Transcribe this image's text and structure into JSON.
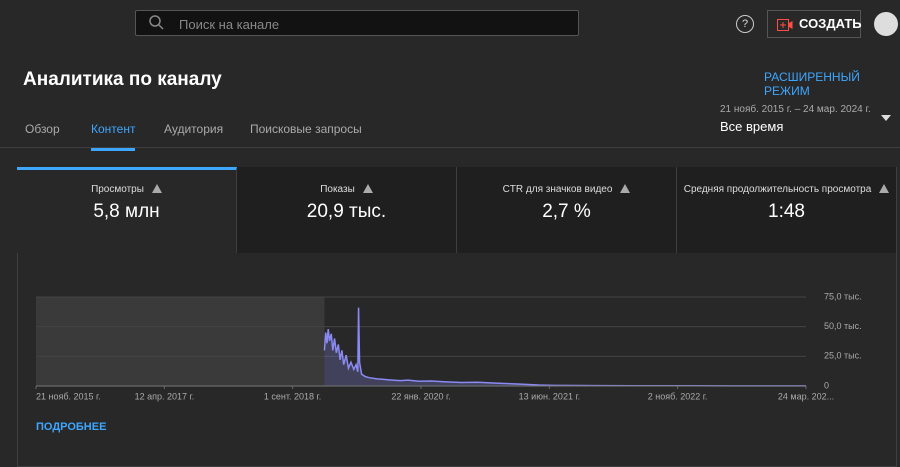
{
  "header": {
    "search_placeholder": "Поиск на канале",
    "help": "?",
    "create_button": "СОЗДАТЬ"
  },
  "page": {
    "title": "Аналитика по каналу",
    "advanced_mode": "РАСШИРЕННЫЙ РЕЖИМ",
    "date_range": "21 нояб. 2015 г. – 24 мар. 2024 г.",
    "period": "Все время",
    "tabs": [
      "Обзор",
      "Контент",
      "Аудитория",
      "Поисковые запросы"
    ],
    "active_tab": 1
  },
  "metrics": [
    {
      "label": "Просмотры",
      "value": "5,8 млн"
    },
    {
      "label": "Показы",
      "value": "20,9 тыс."
    },
    {
      "label": "CTR для значков видео",
      "value": "2,7 %"
    },
    {
      "label": "Средняя продолжительность просмотра",
      "value": "1:48"
    }
  ],
  "more_link": "ПОДРОБНЕЕ",
  "chart_data": {
    "type": "line",
    "x": [
      "2019-01-05",
      "2019-01-10",
      "2019-01-15",
      "2019-01-20",
      "2019-01-25",
      "2019-02-01",
      "2019-02-07",
      "2019-02-14",
      "2019-02-21",
      "2019-03-01",
      "2019-03-08",
      "2019-03-15",
      "2019-03-22",
      "2019-04-01",
      "2019-04-10",
      "2019-04-20",
      "2019-05-01",
      "2019-05-10",
      "2019-05-17",
      "2019-05-20",
      "2019-05-24",
      "2019-06-01",
      "2019-06-15",
      "2019-07-01",
      "2019-08-01",
      "2019-09-01",
      "2019-10-01",
      "2019-11-01",
      "2019-12-01",
      "2020-01-15",
      "2020-03-01",
      "2020-05-01",
      "2020-07-01",
      "2020-09-01",
      "2020-11-01",
      "2021-01-01",
      "2021-03-01",
      "2021-05-01",
      "2021-07-01",
      "2021-10-01",
      "2022-01-01",
      "2022-06-01",
      "2023-01-01",
      "2023-06-01",
      "2024-03-24"
    ],
    "series": [
      {
        "name": "Просмотры",
        "color": "#8a8af2",
        "values": [
          30000,
          45000,
          36000,
          48000,
          38000,
          44000,
          30000,
          40000,
          28000,
          35000,
          22000,
          30000,
          18000,
          26000,
          15000,
          20000,
          14000,
          18000,
          12000,
          66000,
          20000,
          10000,
          8000,
          7000,
          6000,
          5500,
          5000,
          4500,
          5000,
          4000,
          4200,
          3500,
          3000,
          3200,
          2500,
          2000,
          1500,
          800,
          500,
          400,
          300,
          250,
          200,
          150,
          100
        ]
      }
    ],
    "xlim": [
      "2015-11-21",
      "2024-03-24"
    ],
    "xticks": [
      {
        "value": "2015-11-21",
        "label": "21 нояб. 2015 г."
      },
      {
        "value": "2017-04-12",
        "label": "12 апр. 2017 г."
      },
      {
        "value": "2018-09-01",
        "label": "1 сент. 2018 г."
      },
      {
        "value": "2020-01-22",
        "label": "22 янв. 2020 г."
      },
      {
        "value": "2021-06-13",
        "label": "13 июн. 2021 г."
      },
      {
        "value": "2022-11-02",
        "label": "2 нояб. 2022 г."
      },
      {
        "value": "2024-03-24",
        "label": "24 мар. 202..."
      }
    ],
    "ylim": [
      0,
      75000
    ],
    "yticks": [
      0,
      {
        "value": 25000,
        "label": "25,0 тыс."
      },
      {
        "value": 50000,
        "label": "50,0 тыс."
      },
      {
        "value": 75000,
        "label": "75,0 тыс."
      }
    ],
    "grid": true
  }
}
